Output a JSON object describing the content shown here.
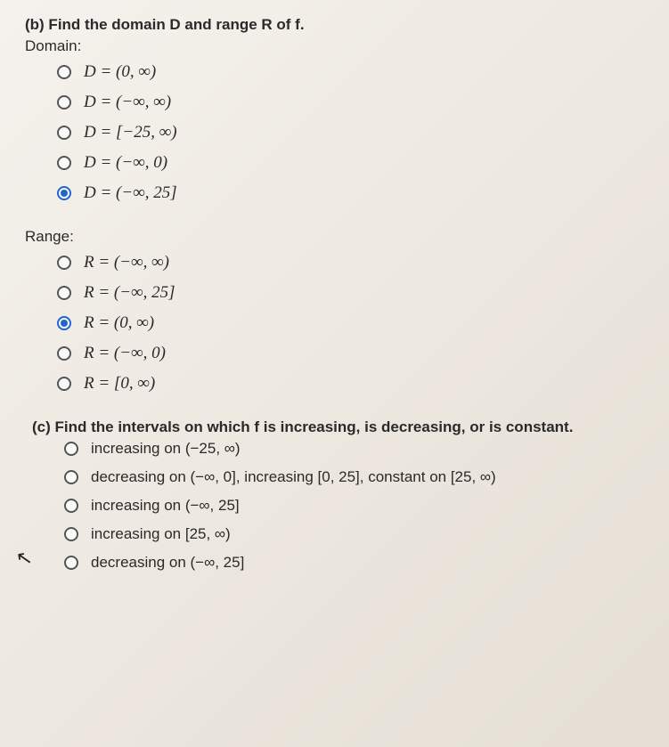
{
  "partB": {
    "prompt": "(b) Find the domain D and range R of f.",
    "domain": {
      "label": "Domain:",
      "options": [
        {
          "text": "D = (0, ∞)",
          "selected": false
        },
        {
          "text": "D = (−∞, ∞)",
          "selected": false
        },
        {
          "text": "D = [−25, ∞)",
          "selected": false
        },
        {
          "text": "D = (−∞, 0)",
          "selected": false
        },
        {
          "text": "D = (−∞, 25]",
          "selected": true
        }
      ]
    },
    "range": {
      "label": "Range:",
      "options": [
        {
          "text": "R = (−∞, ∞)",
          "selected": false
        },
        {
          "text": "R = (−∞, 25]",
          "selected": false
        },
        {
          "text": "R = (0, ∞)",
          "selected": true
        },
        {
          "text": "R = (−∞, 0)",
          "selected": false
        },
        {
          "text": "R = [0, ∞)",
          "selected": false
        }
      ]
    }
  },
  "partC": {
    "prompt": "(c) Find the intervals on which f is increasing, is decreasing, or is constant.",
    "options": [
      {
        "text": "increasing on (−25, ∞)",
        "selected": false
      },
      {
        "text": "decreasing on (−∞, 0], increasing [0, 25], constant on [25, ∞)",
        "selected": false
      },
      {
        "text": "increasing on (−∞, 25]",
        "selected": false
      },
      {
        "text": "increasing on [25, ∞)",
        "selected": false
      },
      {
        "text": "decreasing on (−∞, 25]",
        "selected": false
      }
    ]
  },
  "cursor": "↖"
}
